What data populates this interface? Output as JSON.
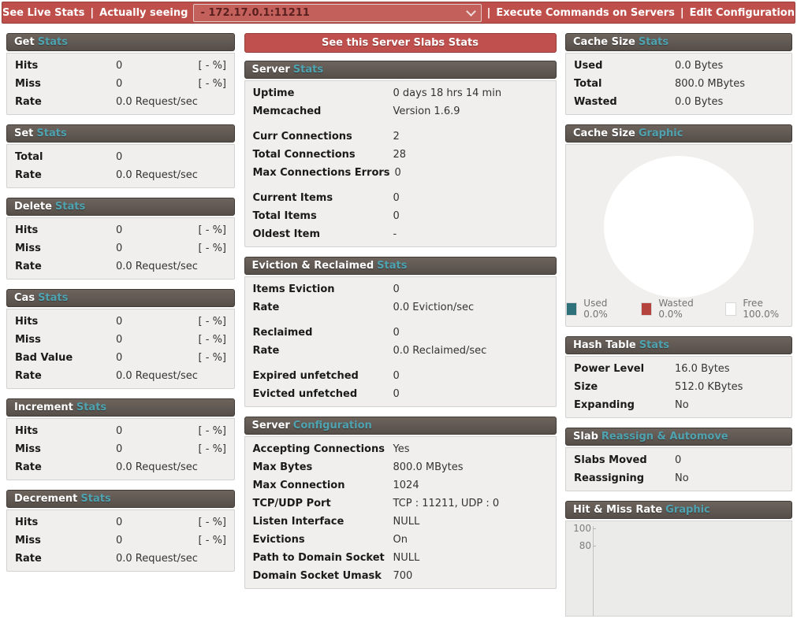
{
  "topbar": {
    "see_live_stats": "See Live Stats",
    "sep1": "|",
    "actually_seeing": "Actually seeing",
    "server_select_value": "- 172.17.0.1:11211",
    "sep2": "|",
    "execute_commands": "Execute Commands on Servers",
    "sep3": "|",
    "edit_configuration": "Edit Configuration"
  },
  "colors": {
    "topbar_red": "#bf4f4b",
    "button_red": "#c0504d",
    "header_dark": "#5f5751",
    "accent_teal": "#4fa3b1",
    "body_gray": "#f0efed",
    "pie_used": "#2e717a",
    "pie_wasted": "#b5443f",
    "pie_free": "#ffffff"
  },
  "columns": [
    {
      "side": "left",
      "panels": [
        {
          "type": "stats",
          "title_white": "Get",
          "title_accent": "Stats",
          "rows": [
            {
              "label": "Hits",
              "value": "0",
              "pct": "[ - %]"
            },
            {
              "label": "Miss",
              "value": "0",
              "pct": "[ - %]"
            },
            {
              "label": "Rate",
              "value": "0.0 Request/sec"
            }
          ]
        },
        {
          "type": "stats",
          "title_white": "Set",
          "title_accent": "Stats",
          "rows": [
            {
              "label": "Total",
              "value": "0"
            },
            {
              "label": "Rate",
              "value": "0.0 Request/sec"
            }
          ]
        },
        {
          "type": "stats",
          "title_white": "Delete",
          "title_accent": "Stats",
          "rows": [
            {
              "label": "Hits",
              "value": "0",
              "pct": "[ - %]"
            },
            {
              "label": "Miss",
              "value": "0",
              "pct": "[ - %]"
            },
            {
              "label": "Rate",
              "value": "0.0 Request/sec"
            }
          ]
        },
        {
          "type": "stats",
          "title_white": "Cas",
          "title_accent": "Stats",
          "rows": [
            {
              "label": "Hits",
              "value": "0",
              "pct": "[ - %]"
            },
            {
              "label": "Miss",
              "value": "0",
              "pct": "[ - %]"
            },
            {
              "label": "Bad Value",
              "value": "0",
              "pct": "[ - %]"
            },
            {
              "label": "Rate",
              "value": "0.0 Request/sec"
            }
          ]
        },
        {
          "type": "stats",
          "title_white": "Increment",
          "title_accent": "Stats",
          "rows": [
            {
              "label": "Hits",
              "value": "0",
              "pct": "[ - %]"
            },
            {
              "label": "Miss",
              "value": "0",
              "pct": "[ - %]"
            },
            {
              "label": "Rate",
              "value": "0.0 Request/sec"
            }
          ]
        },
        {
          "type": "stats",
          "title_white": "Decrement",
          "title_accent": "Stats",
          "rows": [
            {
              "label": "Hits",
              "value": "0",
              "pct": "[ - %]"
            },
            {
              "label": "Miss",
              "value": "0",
              "pct": "[ - %]"
            },
            {
              "label": "Rate",
              "value": "0.0 Request/sec"
            }
          ]
        }
      ]
    },
    {
      "side": "middle",
      "button_label": "See this Server Slabs Stats",
      "panels": [
        {
          "type": "stats",
          "title_white": "Server",
          "title_accent": "Stats",
          "rows": [
            {
              "label": "Uptime",
              "value": "0 days 18 hrs 14 min"
            },
            {
              "label": "Memcached",
              "value": "Version 1.6.9"
            },
            {
              "label": "Curr Connections",
              "value": "2",
              "gap": true
            },
            {
              "label": "Total Connections",
              "value": "28"
            },
            {
              "label": "Max Connections Errors",
              "value": "0"
            },
            {
              "label": "Current Items",
              "value": "0",
              "gap": true
            },
            {
              "label": "Total Items",
              "value": "0"
            },
            {
              "label": "Oldest Item",
              "value": "-"
            }
          ]
        },
        {
          "type": "stats",
          "title_white": "Eviction & Reclaimed",
          "title_accent": "Stats",
          "rows": [
            {
              "label": "Items Eviction",
              "value": "0"
            },
            {
              "label": "Rate",
              "value": "0.0 Eviction/sec"
            },
            {
              "label": "Reclaimed",
              "value": "0",
              "gap": true
            },
            {
              "label": "Rate",
              "value": "0.0 Reclaimed/sec"
            },
            {
              "label": "Expired unfetched",
              "value": "0",
              "gap": true
            },
            {
              "label": "Evicted unfetched",
              "value": "0"
            }
          ]
        },
        {
          "type": "stats",
          "title_white": "Server",
          "title_accent": "Configuration",
          "rows": [
            {
              "label": "Accepting Connections",
              "value": "Yes"
            },
            {
              "label": "Max Bytes",
              "value": "800.0 MBytes"
            },
            {
              "label": "Max Connection",
              "value": "1024"
            },
            {
              "label": "TCP/UDP Port",
              "value": "TCP : 11211, UDP : 0"
            },
            {
              "label": "Listen Interface",
              "value": "NULL"
            },
            {
              "label": "Evictions",
              "value": "On"
            },
            {
              "label": "Path to Domain Socket",
              "value": "NULL"
            },
            {
              "label": "Domain Socket Umask",
              "value": "700"
            }
          ]
        }
      ]
    },
    {
      "side": "right",
      "panels": [
        {
          "type": "stats",
          "title_white": "Cache Size",
          "title_accent": "Stats",
          "rows": [
            {
              "label": "Used",
              "value": "0.0 Bytes"
            },
            {
              "label": "Total",
              "value": "800.0 MBytes"
            },
            {
              "label": "Wasted",
              "value": "0.0 Bytes"
            }
          ]
        },
        {
          "type": "pie",
          "title_white": "Cache Size",
          "title_accent": "Graphic",
          "legend": [
            {
              "label": "Used 0.0%",
              "color": "#2e717a"
            },
            {
              "label": "Wasted 0.0%",
              "color": "#b5443f"
            },
            {
              "label": "Free 100.0%",
              "color": "#ffffff"
            }
          ]
        },
        {
          "type": "stats",
          "title_white": "Hash Table",
          "title_accent": "Stats",
          "rows": [
            {
              "label": "Power Level",
              "value": "16.0 Bytes"
            },
            {
              "label": "Size",
              "value": "512.0 KBytes"
            },
            {
              "label": "Expanding",
              "value": "No"
            }
          ]
        },
        {
          "type": "stats",
          "title_white": "Slab",
          "title_accent": "Reassign & Automove",
          "rows": [
            {
              "label": "Slabs Moved",
              "value": "0"
            },
            {
              "label": "Reassigning",
              "value": "No"
            }
          ]
        },
        {
          "type": "chart",
          "title_white": "Hit & Miss Rate",
          "title_accent": "Graphic",
          "y_ticks": [
            "100",
            "80"
          ]
        }
      ]
    }
  ],
  "chart_data": [
    {
      "type": "pie",
      "title": "Cache Size Graphic",
      "labels": [
        "Used",
        "Wasted",
        "Free"
      ],
      "values": [
        0.0,
        0.0,
        100.0
      ],
      "unit": "%",
      "colors": [
        "#2e717a",
        "#b5443f",
        "#ffffff"
      ],
      "legend_position": "bottom"
    },
    {
      "type": "line",
      "title": "Hit & Miss Rate Graphic",
      "y_ticks_visible": [
        100,
        80
      ],
      "series": [],
      "note": "chart area cut off at bottom of viewport; only axis with ticks 100 and 80 visible"
    }
  ]
}
